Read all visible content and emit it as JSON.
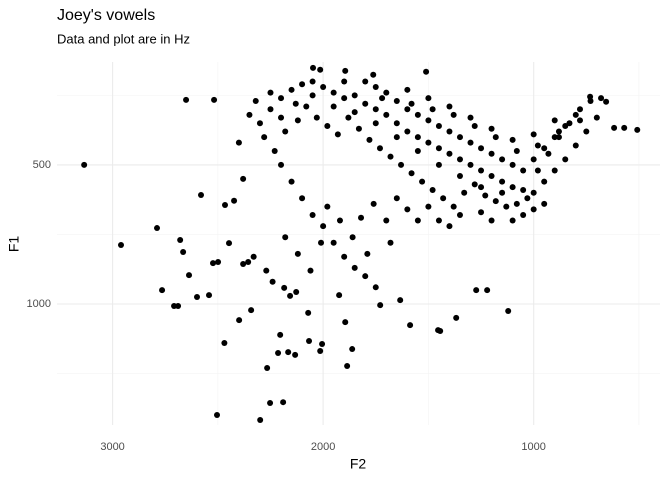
{
  "chart_data": {
    "type": "scatter",
    "title": "Joey's vowels",
    "subtitle": "Data and plot are in Hz",
    "x_label": "F2",
    "y_label": "F1",
    "color": "#000000",
    "grid": true,
    "xlim": [
      3264,
      400
    ],
    "ylim": [
      1435,
      130
    ],
    "xticks": [
      3000,
      2000,
      1000
    ],
    "yticks": [
      500,
      1000
    ],
    "x_minor": [
      2500,
      1500,
      500
    ],
    "y_minor": [
      250,
      750,
      1250
    ],
    "x": [
      3135,
      2960,
      2789,
      2679,
      2665,
      2637,
      2765,
      2708,
      2689,
      2599,
      2542,
      2651,
      2518,
      2504,
      2299,
      2252,
      2190,
      2469,
      2266,
      2204,
      2166,
      2214,
      2133,
      2399,
      2342,
      2067,
      2005,
      2014,
      1886,
      1862,
      1895,
      1924,
      2071,
      2128,
      2185,
      2157,
      2356,
      2380,
      2523,
      2499,
      2447,
      2423,
      2580,
      2466,
      1587,
      1454,
      1368,
      1273,
      1221,
      1121,
      1444,
      1729,
      1634,
      2048,
      2014,
      1895,
      1511,
      1762,
      732,
      656,
      508,
      570,
      618,
      2250,
      2200,
      2150,
      2100,
      2050,
      2000,
      1950,
      1900,
      1850,
      1800,
      1750,
      1700,
      1650,
      1600,
      1550,
      1500,
      1450,
      1400,
      1350,
      1300,
      1250,
      1200,
      1150,
      1100,
      1050,
      1000,
      950,
      900,
      850,
      800,
      750,
      700,
      2280,
      2230,
      2180,
      2120,
      2080,
      2030,
      1980,
      1930,
      1880,
      1830,
      1780,
      1730,
      1680,
      1630,
      1580,
      1530,
      1480,
      1430,
      1380,
      1330,
      1280,
      1230,
      1180,
      1130,
      1080,
      1030,
      980,
      930,
      880,
      830,
      780,
      730,
      680,
      1700,
      1650,
      1600,
      1550,
      1500,
      1450,
      1400,
      1350,
      1300,
      1250,
      1200,
      1150,
      1100,
      1050,
      1000,
      950,
      900,
      850,
      800,
      1800,
      1750,
      1600,
      1500,
      1400,
      1300,
      1200,
      1100,
      1000,
      900,
      2350,
      2320,
      2300,
      2400,
      2380,
      2200,
      2150,
      2100,
      2050,
      2000,
      1950,
      1900,
      1850,
      1800,
      1750,
      2180,
      2120,
      2060,
      1980,
      1920,
      1860,
      1820,
      1760,
      1700,
      1650,
      1600,
      1550,
      1500,
      1450,
      1400,
      1350,
      1250,
      1200,
      1100,
      1050,
      1000,
      950,
      2050,
      1950,
      1850,
      1750,
      1650,
      1550,
      1450,
      1350,
      1250,
      1150,
      2250,
      2200,
      2130,
      1900,
      1720,
      1580,
      1480,
      1380,
      1280,
      1180,
      1080,
      980,
      880,
      780,
      2270,
      2240,
      2330,
      2010,
      1790,
      1680
    ],
    "y": [
      500,
      788,
      727,
      770,
      813,
      896,
      950,
      1007,
      1007,
      975,
      968,
      266,
      266,
      1399,
      1417,
      1356,
      1353,
      1140,
      1230,
      1111,
      1173,
      1176,
      1183,
      1058,
      1022,
      1133,
      1144,
      1169,
      1223,
      1162,
      1065,
      968,
      1032,
      957,
      942,
      971,
      849,
      856,
      853,
      849,
      781,
      629,
      608,
      644,
      1076,
      1094,
      1050,
      950,
      950,
      1025,
      1097,
      1004,
      986,
      151,
      158,
      162,
      165,
      176,
      255,
      273,
      374,
      367,
      367,
      300,
      260,
      230,
      210,
      200,
      220,
      240,
      260,
      250,
      280,
      300,
      320,
      350,
      380,
      400,
      420,
      440,
      460,
      480,
      500,
      520,
      540,
      560,
      580,
      590,
      600,
      560,
      520,
      480,
      430,
      380,
      330,
      400,
      450,
      380,
      340,
      290,
      330,
      360,
      390,
      330,
      370,
      410,
      440,
      470,
      500,
      530,
      560,
      590,
      620,
      650,
      600,
      570,
      610,
      630,
      650,
      640,
      620,
      520,
      460,
      400,
      350,
      300,
      270,
      260,
      240,
      270,
      300,
      320,
      340,
      360,
      380,
      400,
      420,
      440,
      460,
      480,
      500,
      520,
      480,
      440,
      400,
      360,
      320,
      200,
      220,
      230,
      260,
      290,
      330,
      370,
      410,
      390,
      340,
      320,
      270,
      350,
      420,
      550,
      500,
      560,
      620,
      680,
      720,
      780,
      830,
      870,
      900,
      940,
      760,
      820,
      880,
      650,
      700,
      760,
      690,
      640,
      700,
      620,
      660,
      700,
      650,
      700,
      720,
      680,
      670,
      700,
      700,
      680,
      660,
      640,
      250,
      290,
      310,
      350,
      400,
      450,
      500,
      540,
      580,
      600,
      240,
      330,
      280,
      200,
      260,
      280,
      300,
      320,
      360,
      400,
      450,
      430,
      380,
      340,
      880,
      920,
      830,
      780,
      820,
      780
    ]
  }
}
